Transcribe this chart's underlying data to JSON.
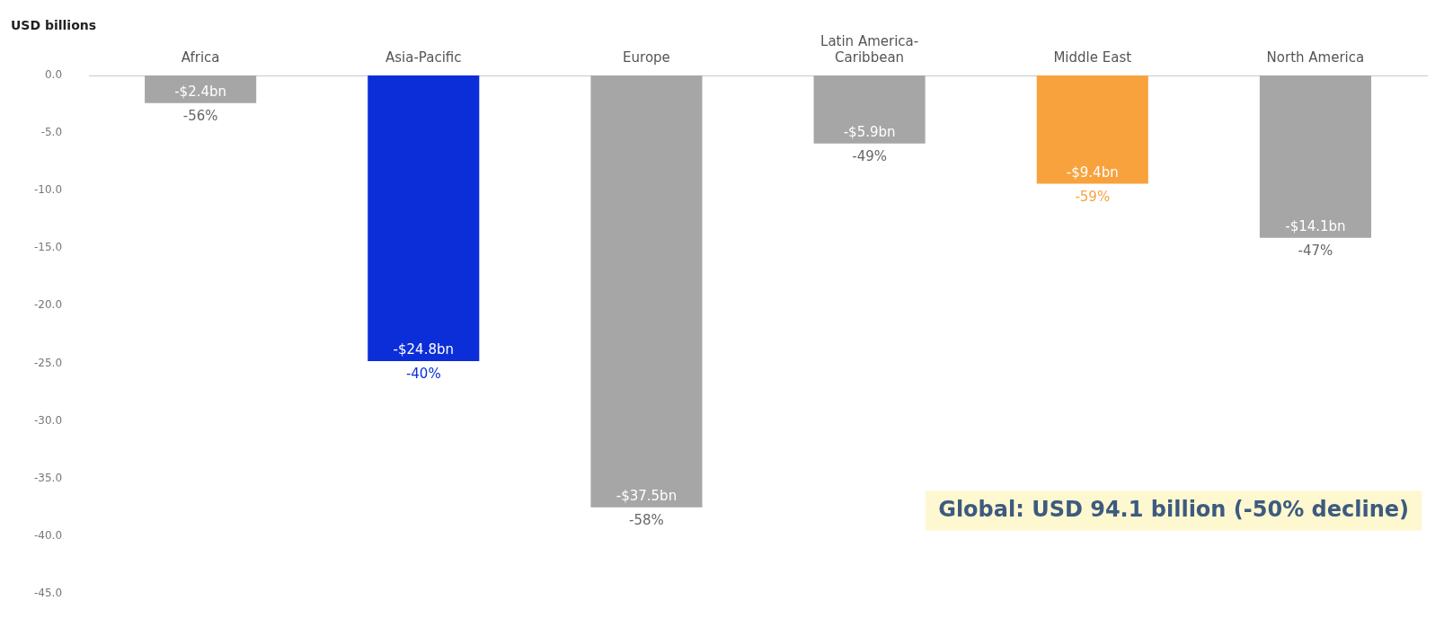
{
  "chart_data": {
    "type": "bar",
    "ylabel": "USD billions",
    "categories": [
      "Africa",
      "Asia-Pacific",
      "Europe",
      "Latin America-Caribbean",
      "Middle East",
      "North America"
    ],
    "values": [
      -2.4,
      -24.8,
      -37.5,
      -5.9,
      -9.4,
      -14.1
    ],
    "colors": [
      "#a6a6a6",
      "#0b2ed8",
      "#a6a6a6",
      "#a6a6a6",
      "#f8a23e",
      "#a6a6a6"
    ],
    "value_labels": [
      "-$2.4bn",
      "-$24.8bn",
      "-$37.5bn",
      "-$5.9bn",
      "-$9.4bn",
      "-$14.1bn"
    ],
    "ylim": [
      -45,
      0
    ],
    "yticks": [
      {
        "value": 0,
        "label": "0.0"
      },
      {
        "value": -5,
        "label": "-5.0"
      },
      {
        "value": -10,
        "label": "-10.0"
      },
      {
        "value": -15,
        "label": "-15.0"
      },
      {
        "value": -20,
        "label": "-20.0"
      },
      {
        "value": -25,
        "label": "-25.0"
      },
      {
        "value": -30,
        "label": "-30.0"
      },
      {
        "value": -35,
        "label": "-35.0"
      },
      {
        "value": -40,
        "label": "-40.0"
      },
      {
        "value": -45,
        "label": "-45.0"
      }
    ],
    "grid": false,
    "legend": false,
    "annotations": [
      {
        "text": "-56%",
        "x": "Africa",
        "y": -2.4
      },
      {
        "text": "-40%",
        "x": "Asia-Pacific",
        "y": -24.8
      },
      {
        "text": "-58%",
        "x": "Europe",
        "y": -37.5
      },
      {
        "text": "-49%",
        "x": "Latin America-Caribbean",
        "y": -5.9
      },
      {
        "text": "-59%",
        "x": "Middle East",
        "y": -9.4
      },
      {
        "text": "-47%",
        "x": "North America",
        "y": -14.1
      },
      "Global: USD 94.1 billion (-50% decline)"
    ]
  }
}
